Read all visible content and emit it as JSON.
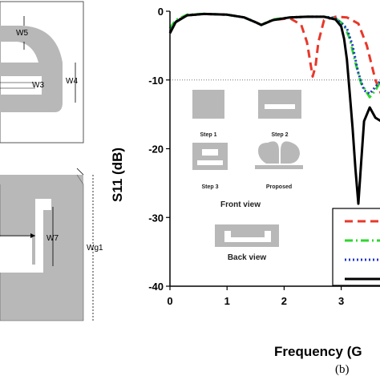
{
  "left_panel": {
    "top_labels": [
      "W5",
      "W3",
      "W4"
    ],
    "bottom_labels": [
      "W7",
      "Wg1"
    ]
  },
  "chart_data": {
    "type": "line",
    "xlabel": "Frequency (G",
    "ylabel": "S11 (dB)",
    "xlim": [
      0,
      3.7
    ],
    "ylim": [
      -40,
      0
    ],
    "xticks": [
      0,
      1,
      2,
      3
    ],
    "yticks": [
      0,
      -10,
      -20,
      -30,
      -40
    ],
    "reference_line": -10,
    "grid": false,
    "legend_position": "bottom-right (cropped)",
    "series": [
      {
        "color": "#e8382a",
        "dash": "dashed",
        "x": [
          0,
          0.1,
          0.3,
          0.6,
          1.0,
          1.3,
          1.5,
          1.6,
          1.8,
          2.1,
          2.3,
          2.4,
          2.5,
          2.55,
          2.6,
          2.7,
          2.9,
          3.1,
          3.3,
          3.45,
          3.6,
          3.7
        ],
        "y": [
          -2.5,
          -1.5,
          -0.6,
          -0.4,
          -0.5,
          -0.9,
          -1.6,
          -2.0,
          -1.3,
          -1.0,
          -2.0,
          -4.5,
          -9.5,
          -8.0,
          -4.5,
          -1.3,
          -0.8,
          -0.9,
          -1.8,
          -5,
          -10,
          -12
        ]
      },
      {
        "color": "#2fd62f",
        "dash": "dash-dot",
        "x": [
          0,
          0.1,
          0.3,
          0.6,
          1.0,
          1.3,
          1.5,
          1.6,
          1.8,
          2.1,
          2.4,
          2.7,
          2.9,
          3.05,
          3.15,
          3.25,
          3.35,
          3.5,
          3.6,
          3.7
        ],
        "y": [
          -2.5,
          -1.3,
          -0.5,
          -0.4,
          -0.5,
          -0.9,
          -1.6,
          -2.0,
          -1.2,
          -0.9,
          -0.8,
          -0.8,
          -1.0,
          -2.0,
          -4.0,
          -7.5,
          -10.5,
          -12.5,
          -11.5,
          -10
        ]
      },
      {
        "color": "#2234c8",
        "dash": "dotted",
        "x": [
          0,
          0.1,
          0.3,
          0.6,
          1.0,
          1.3,
          1.5,
          1.6,
          1.8,
          2.1,
          2.4,
          2.7,
          2.9,
          3.1,
          3.2,
          3.3,
          3.4,
          3.5,
          3.6,
          3.7
        ],
        "y": [
          -3.0,
          -1.5,
          -0.6,
          -0.4,
          -0.5,
          -0.9,
          -1.6,
          -2.0,
          -1.3,
          -0.9,
          -0.8,
          -0.8,
          -1.0,
          -2.5,
          -5.0,
          -9.0,
          -11.5,
          -12.0,
          -11.0,
          -10
        ]
      },
      {
        "color": "#000000",
        "dash": "solid",
        "x": [
          0,
          0.1,
          0.3,
          0.6,
          1.0,
          1.3,
          1.5,
          1.6,
          1.8,
          2.1,
          2.4,
          2.7,
          2.9,
          3.0,
          3.05,
          3.1,
          3.15,
          3.2,
          3.25,
          3.3,
          3.35,
          3.4,
          3.5,
          3.6,
          3.7
        ],
        "y": [
          -3.2,
          -1.6,
          -0.6,
          -0.4,
          -0.5,
          -0.9,
          -1.6,
          -2.0,
          -1.3,
          -0.9,
          -0.8,
          -0.8,
          -1.2,
          -2.2,
          -4.0,
          -7.0,
          -12,
          -17,
          -23,
          -28,
          -22,
          -16,
          -14,
          -15.5,
          -16
        ]
      }
    ],
    "inset": {
      "steps": [
        "Step 1",
        "Step 2",
        "Step 3",
        "Proposed"
      ],
      "front_label": "Front view",
      "back_label": "Back view"
    }
  },
  "panel_label": "(b)"
}
